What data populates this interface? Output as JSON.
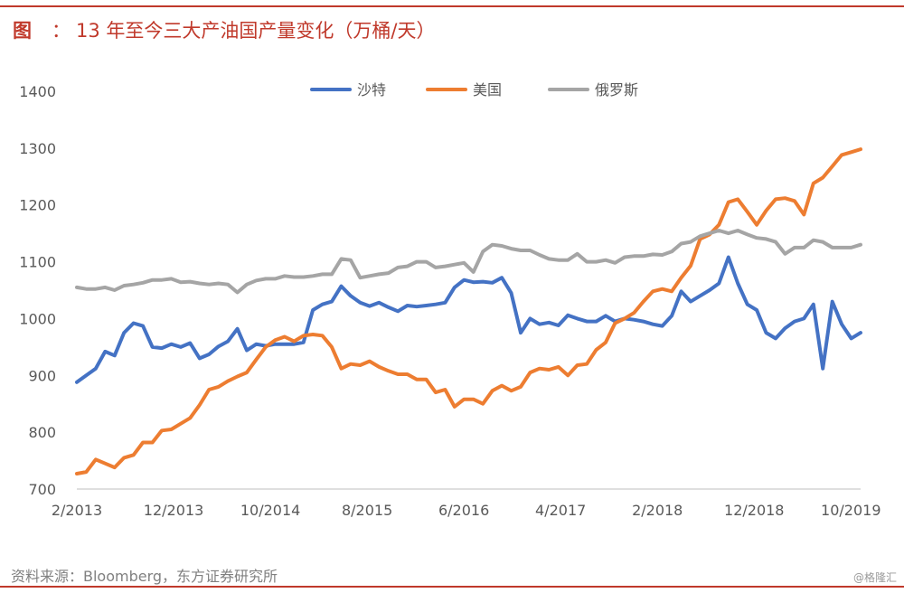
{
  "header": {
    "label": "图",
    "colon": "：",
    "title": "13 年至今三大产油国产量变化（万桶/天）"
  },
  "footer": {
    "source": "资料来源：Bloomberg，东方证券研究所",
    "watermark": "@格隆汇"
  },
  "colors": {
    "accent": "#c0392b",
    "saudi": "#4472c4",
    "usa": "#ed7d31",
    "russia": "#a5a5a5"
  },
  "chart_data": {
    "type": "line",
    "title": "13 年至今三大产油国产量变化（万桶/天）",
    "xlabel": "",
    "ylabel": "",
    "ylim": [
      700,
      1400
    ],
    "yticks": [
      700,
      800,
      900,
      1000,
      1100,
      1200,
      1300,
      1400
    ],
    "x_start": "2/2013",
    "x_end": "11/2019",
    "x_tick_labels": [
      "2/2013",
      "12/2013",
      "10/2014",
      "8/2015",
      "6/2016",
      "4/2017",
      "2/2018",
      "12/2018",
      "10/2019"
    ],
    "grid": false,
    "legend_position": "top",
    "series": [
      {
        "name": "沙特",
        "color": "#4472c4",
        "values": [
          888,
          900,
          912,
          942,
          935,
          975,
          992,
          987,
          950,
          948,
          955,
          950,
          957,
          930,
          937,
          951,
          960,
          982,
          944,
          955,
          952,
          955,
          955,
          955,
          958,
          1015,
          1025,
          1030,
          1057,
          1040,
          1028,
          1022,
          1028,
          1020,
          1013,
          1023,
          1021,
          1023,
          1025,
          1028,
          1055,
          1068,
          1064,
          1065,
          1063,
          1072,
          1045,
          975,
          1000,
          990,
          993,
          988,
          1006,
          1000,
          995,
          995,
          1005,
          995,
          1000,
          998,
          995,
          990,
          987,
          1005,
          1048,
          1030,
          1040,
          1050,
          1062,
          1108,
          1062,
          1025,
          1015,
          975,
          965,
          983,
          995,
          1000,
          1025,
          912,
          1030,
          990,
          965,
          975
        ]
      },
      {
        "name": "美国",
        "color": "#ed7d31",
        "values": [
          727,
          730,
          752,
          745,
          738,
          755,
          760,
          782,
          782,
          803,
          805,
          815,
          825,
          848,
          875,
          880,
          890,
          898,
          905,
          928,
          950,
          962,
          968,
          960,
          970,
          972,
          970,
          950,
          912,
          920,
          918,
          925,
          915,
          908,
          902,
          902,
          893,
          893,
          870,
          875,
          845,
          858,
          858,
          850,
          873,
          882,
          873,
          880,
          905,
          912,
          910,
          915,
          900,
          918,
          920,
          945,
          958,
          992,
          1000,
          1010,
          1030,
          1048,
          1052,
          1048,
          1072,
          1093,
          1140,
          1148,
          1165,
          1205,
          1210,
          1188,
          1165,
          1190,
          1210,
          1212,
          1207,
          1183,
          1238,
          1248,
          1268,
          1288,
          1293,
          1298
        ]
      },
      {
        "name": "俄罗斯",
        "color": "#a5a5a5",
        "values": [
          1055,
          1052,
          1052,
          1055,
          1050,
          1058,
          1060,
          1063,
          1068,
          1068,
          1070,
          1064,
          1065,
          1062,
          1060,
          1062,
          1060,
          1046,
          1060,
          1067,
          1070,
          1070,
          1075,
          1073,
          1073,
          1075,
          1078,
          1078,
          1105,
          1103,
          1072,
          1075,
          1078,
          1080,
          1090,
          1092,
          1100,
          1100,
          1090,
          1092,
          1095,
          1098,
          1082,
          1118,
          1130,
          1128,
          1123,
          1120,
          1120,
          1112,
          1105,
          1103,
          1103,
          1114,
          1100,
          1100,
          1103,
          1098,
          1108,
          1110,
          1110,
          1113,
          1112,
          1118,
          1132,
          1135,
          1145,
          1150,
          1155,
          1150,
          1155,
          1148,
          1142,
          1140,
          1135,
          1114,
          1125,
          1125,
          1138,
          1135,
          1125,
          1125,
          1125,
          1130
        ]
      }
    ]
  }
}
